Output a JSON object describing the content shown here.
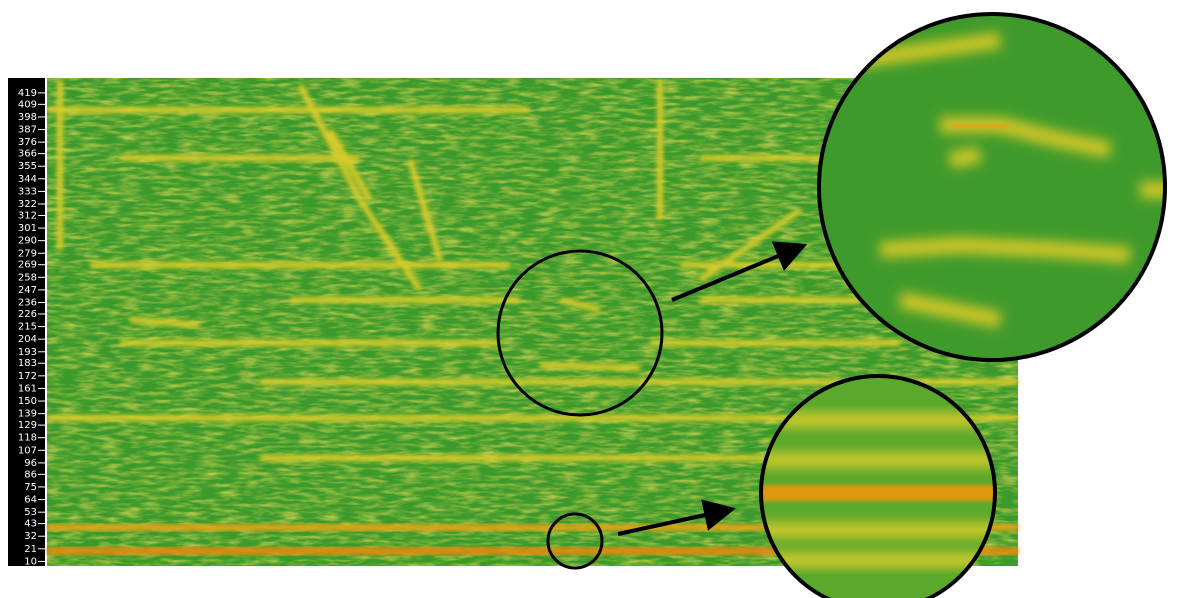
{
  "chart_data": {
    "type": "spectrogram",
    "ylim": [
      6,
      432
    ],
    "yticks": [
      10,
      21,
      32,
      43,
      53,
      64,
      75,
      86,
      96,
      107,
      118,
      129,
      139,
      150,
      161,
      172,
      183,
      193,
      204,
      215,
      226,
      236,
      247,
      258,
      269,
      279,
      290,
      301,
      312,
      322,
      333,
      344,
      355,
      366,
      376,
      387,
      398,
      409,
      419
    ]
  }
}
